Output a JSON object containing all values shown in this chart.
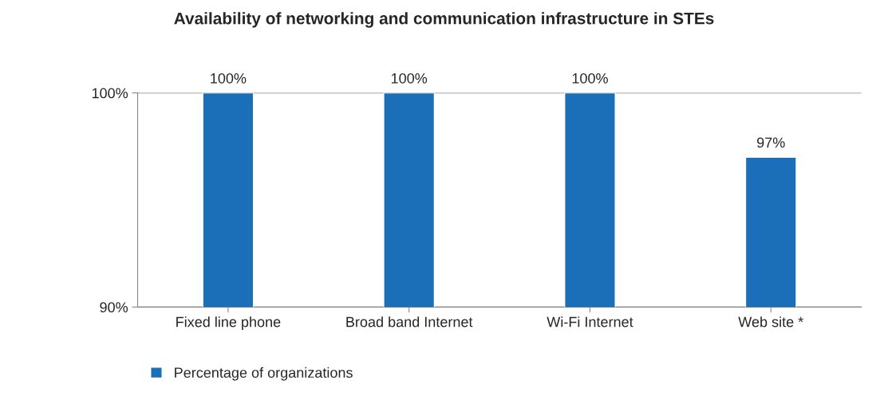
{
  "chart_data": {
    "type": "bar",
    "title": "Availability of networking and communication infrastructure in STEs",
    "categories": [
      "Fixed line phone",
      "Broad band Internet",
      "Wi-Fi Internet",
      "Web site *"
    ],
    "series": [
      {
        "name": "Percentage of organizations",
        "color": "#1a6fb8",
        "values": [
          100,
          100,
          100,
          97
        ]
      }
    ],
    "value_labels": [
      "100%",
      "100%",
      "100%",
      "97%"
    ],
    "ylim": [
      90,
      100
    ],
    "yticks": [
      {
        "value": 90,
        "label": "90%"
      },
      {
        "value": 100,
        "label": "100%"
      }
    ],
    "grid": "y",
    "legend": "bottom left"
  }
}
